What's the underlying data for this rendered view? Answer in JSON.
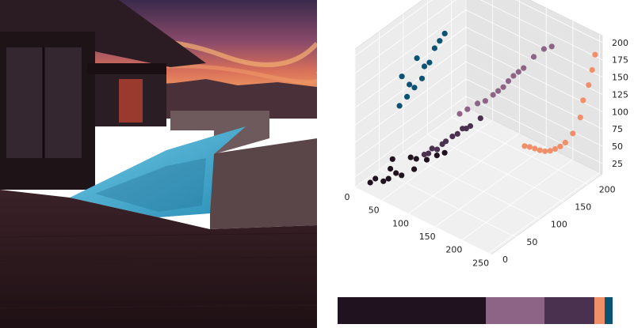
{
  "photo": {
    "subject": "house-with-pool-at-sunset"
  },
  "chart_data": {
    "type": "scatter",
    "projection": "3d",
    "title": "",
    "xlabel": "",
    "ylabel": "",
    "zlabel": "",
    "xlim": [
      0,
      255
    ],
    "ylim": [
      0,
      230
    ],
    "zlim": [
      10,
      210
    ],
    "x_ticks": [
      0,
      50,
      100,
      150,
      200,
      250
    ],
    "y_ticks": [
      0,
      50,
      100,
      150,
      200
    ],
    "z_ticks": [
      25,
      50,
      75,
      100,
      125,
      150,
      175,
      200
    ],
    "grid": true,
    "series": [
      {
        "color": "#211220",
        "approx_points": [
          [
            20,
            20,
            20
          ],
          [
            40,
            25,
            25
          ],
          [
            60,
            30,
            35
          ],
          [
            30,
            40,
            28
          ],
          [
            70,
            45,
            40
          ],
          [
            50,
            60,
            42
          ],
          [
            15,
            15,
            15
          ],
          [
            80,
            60,
            50
          ],
          [
            90,
            70,
            55
          ],
          [
            45,
            35,
            30
          ],
          [
            100,
            75,
            60
          ],
          [
            25,
            50,
            35
          ],
          [
            65,
            55,
            48
          ],
          [
            35,
            20,
            22
          ]
        ]
      },
      {
        "color": "#4a3150",
        "approx_points": [
          [
            80,
            55,
            60
          ],
          [
            90,
            60,
            70
          ],
          [
            100,
            70,
            75
          ],
          [
            110,
            80,
            85
          ],
          [
            120,
            90,
            95
          ],
          [
            95,
            65,
            68
          ],
          [
            130,
            95,
            100
          ],
          [
            85,
            58,
            62
          ],
          [
            140,
            105,
            110
          ],
          [
            115,
            85,
            88
          ],
          [
            105,
            72,
            80
          ],
          [
            125,
            92,
            96
          ]
        ]
      },
      {
        "color": "#8e6486",
        "approx_points": [
          [
            110,
            95,
            110
          ],
          [
            130,
            110,
            125
          ],
          [
            150,
            120,
            140
          ],
          [
            160,
            130,
            150
          ],
          [
            170,
            140,
            165
          ],
          [
            140,
            115,
            130
          ],
          [
            180,
            150,
            175
          ],
          [
            190,
            160,
            190
          ],
          [
            120,
            100,
            118
          ],
          [
            165,
            135,
            158
          ],
          [
            200,
            170,
            200
          ],
          [
            155,
            125,
            145
          ],
          [
            175,
            145,
            170
          ],
          [
            210,
            175,
            205
          ]
        ]
      },
      {
        "color": "#f0906a",
        "approx_points": [
          [
            200,
            130,
            80
          ],
          [
            210,
            140,
            75
          ],
          [
            220,
            150,
            70
          ],
          [
            230,
            160,
            72
          ],
          [
            240,
            170,
            80
          ],
          [
            250,
            190,
            110
          ],
          [
            252,
            205,
            150
          ],
          [
            255,
            215,
            190
          ],
          [
            245,
            180,
            90
          ],
          [
            235,
            165,
            75
          ],
          [
            215,
            145,
            72
          ],
          [
            225,
            155,
            70
          ],
          [
            248,
            198,
            130
          ],
          [
            254,
            210,
            170
          ],
          [
            205,
            135,
            78
          ]
        ]
      },
      {
        "color": "#0b5373",
        "approx_points": [
          [
            20,
            70,
            100
          ],
          [
            25,
            80,
            110
          ],
          [
            30,
            90,
            120
          ],
          [
            35,
            100,
            130
          ],
          [
            20,
            75,
            140
          ],
          [
            40,
            110,
            150
          ],
          [
            30,
            95,
            160
          ],
          [
            45,
            115,
            170
          ],
          [
            50,
            120,
            180
          ],
          [
            25,
            85,
            125
          ],
          [
            35,
            105,
            145
          ],
          [
            55,
            125,
            190
          ]
        ]
      }
    ]
  },
  "palette": [
    {
      "color": "#211220",
      "fraction": 0.538
    },
    {
      "color": "#8e6486",
      "fraction": 0.213
    },
    {
      "color": "#4a3150",
      "fraction": 0.184
    },
    {
      "color": "#f0906a",
      "fraction": 0.037
    },
    {
      "color": "#0b5373",
      "fraction": 0.028
    }
  ]
}
